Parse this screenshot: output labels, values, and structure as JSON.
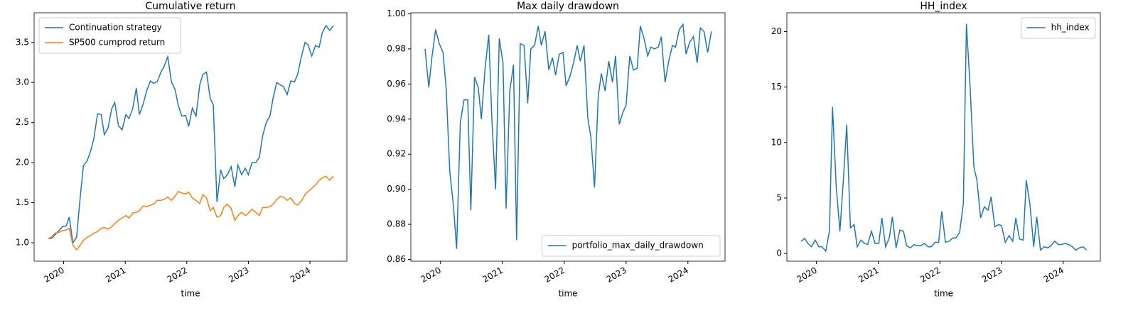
{
  "chart_data": [
    {
      "type": "line",
      "title": "Cumulative return",
      "xlabel": "time",
      "legend": "upper left",
      "x": [
        2019.75,
        2019.81,
        2019.86,
        2019.92,
        2019.98,
        2020.04,
        2020.09,
        2020.15,
        2020.21,
        2020.26,
        2020.32,
        2020.38,
        2020.44,
        2020.49,
        2020.55,
        2020.61,
        2020.66,
        2020.72,
        2020.78,
        2020.83,
        2020.89,
        2020.95,
        2021.01,
        2021.06,
        2021.12,
        2021.18,
        2021.23,
        2021.29,
        2021.35,
        2021.41,
        2021.46,
        2021.52,
        2021.58,
        2021.63,
        2021.69,
        2021.75,
        2021.81,
        2021.86,
        2021.92,
        2021.98,
        2022.03,
        2022.09,
        2022.15,
        2022.21,
        2022.26,
        2022.32,
        2022.38,
        2022.43,
        2022.49,
        2022.55,
        2022.6,
        2022.66,
        2022.72,
        2022.78,
        2022.83,
        2022.89,
        2022.95,
        2023.0,
        2023.06,
        2023.12,
        2023.18,
        2023.23,
        2023.29,
        2023.35,
        2023.4,
        2023.46,
        2023.52,
        2023.57,
        2023.63,
        2023.69,
        2023.75,
        2023.8,
        2023.86,
        2023.92,
        2023.97,
        2024.03,
        2024.09,
        2024.15,
        2024.2,
        2024.26,
        2024.32,
        2024.38
      ],
      "xlim": [
        2019.52,
        2024.6
      ],
      "xticks": [
        2020,
        2021,
        2022,
        2023,
        2024
      ],
      "ylim": [
        0.77,
        3.87
      ],
      "yticks": [
        {
          "value": 1,
          "label": "1.0"
        },
        {
          "value": 1.5,
          "label": "1.5"
        },
        {
          "value": 2,
          "label": "2.0"
        },
        {
          "value": 2.5,
          "label": "2.5"
        },
        {
          "value": 3,
          "label": "3.0"
        },
        {
          "value": 3.5,
          "label": "3.5"
        }
      ],
      "series": [
        {
          "name": "Continuation strategy",
          "color": "#1f77b4",
          "values": [
            1.05,
            1.06,
            1.1,
            1.15,
            1.2,
            1.21,
            1.32,
            1.0,
            1.07,
            1.5,
            1.96,
            2.02,
            2.15,
            2.3,
            2.61,
            2.6,
            2.35,
            2.43,
            2.67,
            2.75,
            2.46,
            2.41,
            2.6,
            2.55,
            2.67,
            2.93,
            2.6,
            2.73,
            2.9,
            3.02,
            2.99,
            3.01,
            3.13,
            3.2,
            3.32,
            3.01,
            2.91,
            2.72,
            2.58,
            2.59,
            2.45,
            2.68,
            2.58,
            2.97,
            3.1,
            3.13,
            2.8,
            2.72,
            1.51,
            1.91,
            1.8,
            1.85,
            1.95,
            1.7,
            1.97,
            1.85,
            1.93,
            1.85,
            2.0,
            2.0,
            2.07,
            2.33,
            2.5,
            2.58,
            2.8,
            3.0,
            2.97,
            2.95,
            2.85,
            3.02,
            3.01,
            3.1,
            3.32,
            3.5,
            3.47,
            3.33,
            3.46,
            3.44,
            3.62,
            3.71,
            3.65,
            3.71
          ]
        },
        {
          "name": "SP500 cumprod return",
          "color": "#ff7f0e",
          "values": [
            1.05,
            1.08,
            1.12,
            1.13,
            1.15,
            1.16,
            1.18,
            0.97,
            0.91,
            0.96,
            1.03,
            1.07,
            1.09,
            1.12,
            1.14,
            1.18,
            1.19,
            1.17,
            1.2,
            1.24,
            1.28,
            1.31,
            1.34,
            1.31,
            1.37,
            1.38,
            1.4,
            1.46,
            1.45,
            1.47,
            1.48,
            1.53,
            1.53,
            1.54,
            1.57,
            1.53,
            1.58,
            1.64,
            1.62,
            1.61,
            1.63,
            1.56,
            1.53,
            1.49,
            1.6,
            1.56,
            1.4,
            1.44,
            1.32,
            1.34,
            1.44,
            1.48,
            1.43,
            1.28,
            1.34,
            1.38,
            1.34,
            1.37,
            1.42,
            1.38,
            1.34,
            1.44,
            1.44,
            1.45,
            1.48,
            1.54,
            1.58,
            1.57,
            1.53,
            1.56,
            1.49,
            1.47,
            1.52,
            1.6,
            1.64,
            1.68,
            1.72,
            1.78,
            1.81,
            1.83,
            1.78,
            1.83
          ]
        }
      ]
    },
    {
      "type": "line",
      "title": "Max daily drawdown",
      "xlabel": "time",
      "legend": "lower right",
      "x": [
        2019.75,
        2019.81,
        2019.86,
        2019.92,
        2019.98,
        2020.04,
        2020.09,
        2020.15,
        2020.21,
        2020.26,
        2020.32,
        2020.38,
        2020.44,
        2020.49,
        2020.55,
        2020.61,
        2020.66,
        2020.72,
        2020.78,
        2020.83,
        2020.89,
        2020.95,
        2021.01,
        2021.06,
        2021.12,
        2021.18,
        2021.23,
        2021.29,
        2021.35,
        2021.41,
        2021.46,
        2021.52,
        2021.58,
        2021.63,
        2021.69,
        2021.75,
        2021.81,
        2021.86,
        2021.92,
        2021.98,
        2022.03,
        2022.09,
        2022.15,
        2022.21,
        2022.26,
        2022.32,
        2022.38,
        2022.43,
        2022.49,
        2022.55,
        2022.6,
        2022.66,
        2022.72,
        2022.78,
        2022.83,
        2022.89,
        2022.95,
        2023.0,
        2023.06,
        2023.12,
        2023.18,
        2023.23,
        2023.29,
        2023.35,
        2023.4,
        2023.46,
        2023.52,
        2023.57,
        2023.63,
        2023.69,
        2023.75,
        2023.8,
        2023.86,
        2023.92,
        2023.97,
        2024.03,
        2024.09,
        2024.15,
        2024.2,
        2024.26,
        2024.32,
        2024.38
      ],
      "xlim": [
        2019.52,
        2024.6
      ],
      "xticks": [
        2020,
        2021,
        2022,
        2023,
        2024
      ],
      "ylim": [
        0.859,
        1.0006
      ],
      "yticks": [
        0.86,
        0.88,
        {
          "value": 0.9,
          "label": "0.90"
        },
        0.92,
        0.94,
        0.96,
        0.98,
        {
          "value": 1,
          "label": "1.00"
        }
      ],
      "series": [
        {
          "name": "portfolio_max_daily_drawdown",
          "color": "#1f77b4",
          "values": [
            0.98,
            0.958,
            0.975,
            0.991,
            0.983,
            0.978,
            0.958,
            0.91,
            0.89,
            0.866,
            0.938,
            0.951,
            0.951,
            0.888,
            0.964,
            0.958,
            0.94,
            0.969,
            0.988,
            0.94,
            0.9,
            0.986,
            0.972,
            0.889,
            0.956,
            0.971,
            0.871,
            0.983,
            0.982,
            0.949,
            0.98,
            0.982,
            0.993,
            0.982,
            0.99,
            0.968,
            0.975,
            0.965,
            0.977,
            0.978,
            0.959,
            0.964,
            0.972,
            0.982,
            0.973,
            0.982,
            0.941,
            0.93,
            0.901,
            0.953,
            0.966,
            0.956,
            0.973,
            0.961,
            0.976,
            0.937,
            0.944,
            0.948,
            0.976,
            0.968,
            0.969,
            0.993,
            0.986,
            0.976,
            0.981,
            0.98,
            0.981,
            0.987,
            0.961,
            0.973,
            0.982,
            0.981,
            0.991,
            0.994,
            0.977,
            0.984,
            0.987,
            0.972,
            0.992,
            0.99,
            0.978,
            0.99
          ]
        }
      ]
    },
    {
      "type": "line",
      "title": "HH_index",
      "xlabel": "time",
      "legend": "upper right",
      "x": [
        2019.75,
        2019.81,
        2019.86,
        2019.92,
        2019.98,
        2020.04,
        2020.09,
        2020.15,
        2020.21,
        2020.26,
        2020.32,
        2020.38,
        2020.44,
        2020.49,
        2020.55,
        2020.61,
        2020.66,
        2020.72,
        2020.78,
        2020.83,
        2020.89,
        2020.95,
        2021.01,
        2021.06,
        2021.12,
        2021.18,
        2021.23,
        2021.29,
        2021.35,
        2021.41,
        2021.46,
        2021.52,
        2021.58,
        2021.63,
        2021.69,
        2021.75,
        2021.81,
        2021.86,
        2021.92,
        2021.98,
        2022.03,
        2022.09,
        2022.15,
        2022.21,
        2022.26,
        2022.32,
        2022.38,
        2022.43,
        2022.49,
        2022.55,
        2022.6,
        2022.66,
        2022.72,
        2022.78,
        2022.83,
        2022.89,
        2022.95,
        2023.0,
        2023.06,
        2023.12,
        2023.18,
        2023.23,
        2023.29,
        2023.35,
        2023.4,
        2023.46,
        2023.52,
        2023.57,
        2023.63,
        2023.69,
        2023.75,
        2023.8,
        2023.86,
        2023.92,
        2023.97,
        2024.03,
        2024.09,
        2024.15,
        2024.2,
        2024.26,
        2024.32,
        2024.38
      ],
      "xlim": [
        2019.52,
        2024.6
      ],
      "xticks": [
        2020,
        2021,
        2022,
        2023,
        2024
      ],
      "ylim": [
        -0.7,
        21.7
      ],
      "yticks": [
        0,
        5,
        10,
        15,
        20
      ],
      "series": [
        {
          "name": "hh_index",
          "color": "#1f77b4",
          "values": [
            1.1,
            1.35,
            0.9,
            0.6,
            1.2,
            0.6,
            0.6,
            0.2,
            2.0,
            13.2,
            6.0,
            2.0,
            7.0,
            11.6,
            2.3,
            2.6,
            0.6,
            1.2,
            0.9,
            0.8,
            2.0,
            0.9,
            0.9,
            3.2,
            0.6,
            1.4,
            3.3,
            0.5,
            2.1,
            2.0,
            0.7,
            0.5,
            0.8,
            0.7,
            0.7,
            0.9,
            0.6,
            0.6,
            1.0,
            1.0,
            3.8,
            1.0,
            1.1,
            1.4,
            1.4,
            1.9,
            4.5,
            20.7,
            15.0,
            7.8,
            6.6,
            3.2,
            4.2,
            3.9,
            5.1,
            2.4,
            2.6,
            2.5,
            1.0,
            1.6,
            1.1,
            3.2,
            1.3,
            1.2,
            6.6,
            4.4,
            0.6,
            3.3,
            0.3,
            0.6,
            0.5,
            0.7,
            1.1,
            0.8,
            0.8,
            0.9,
            0.8,
            0.6,
            0.3,
            0.5,
            0.6,
            0.3
          ]
        }
      ]
    }
  ]
}
